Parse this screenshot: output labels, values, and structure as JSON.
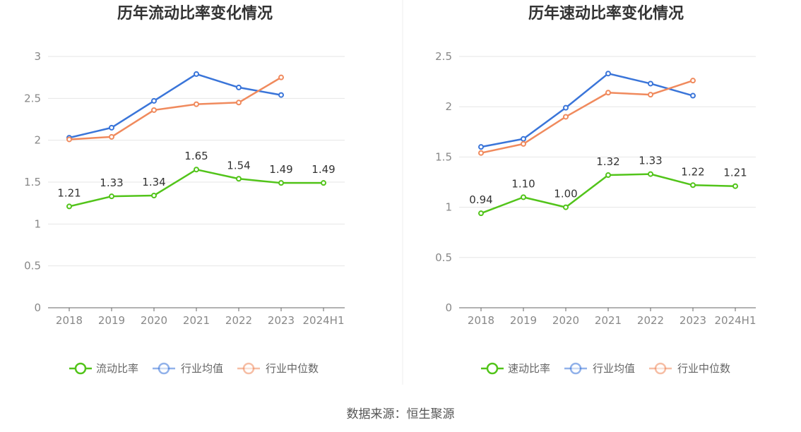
{
  "chart_data": [
    {
      "type": "line",
      "title": "历年流动比率变化情况",
      "categories": [
        "2018",
        "2019",
        "2020",
        "2021",
        "2022",
        "2023",
        "2024H1"
      ],
      "ylim": [
        0,
        3
      ],
      "yticks": [
        "0",
        "0.5",
        "1",
        "1.5",
        "2",
        "2.5",
        "3"
      ],
      "grid": true,
      "legend_position": "bottom",
      "series": [
        {
          "name": "流动比率",
          "color": "#52c41a",
          "values": [
            1.21,
            1.33,
            1.34,
            1.65,
            1.54,
            1.49,
            1.49
          ],
          "labels": [
            "1.21",
            "1.33",
            "1.34",
            "1.65",
            "1.54",
            "1.49",
            "1.49"
          ]
        },
        {
          "name": "行业均值",
          "color": "#3a75d9",
          "values": [
            2.03,
            2.15,
            2.47,
            2.79,
            2.63,
            2.54,
            null
          ]
        },
        {
          "name": "行业中位数",
          "color": "#f08a5d",
          "values": [
            2.01,
            2.04,
            2.36,
            2.43,
            2.45,
            2.75,
            null
          ]
        }
      ]
    },
    {
      "type": "line",
      "title": "历年速动比率变化情况",
      "categories": [
        "2018",
        "2019",
        "2020",
        "2021",
        "2022",
        "2023",
        "2024H1"
      ],
      "ylim": [
        0,
        2.5
      ],
      "yticks": [
        "0",
        "0.5",
        "1",
        "1.5",
        "2",
        "2.5"
      ],
      "grid": true,
      "legend_position": "bottom",
      "series": [
        {
          "name": "速动比率",
          "color": "#52c41a",
          "values": [
            0.94,
            1.1,
            1.0,
            1.32,
            1.33,
            1.22,
            1.21
          ],
          "labels": [
            "0.94",
            "1.10",
            "1.00",
            "1.32",
            "1.33",
            "1.22",
            "1.21"
          ]
        },
        {
          "name": "行业均值",
          "color": "#3a75d9",
          "values": [
            1.6,
            1.68,
            1.99,
            2.33,
            2.23,
            2.11,
            null
          ]
        },
        {
          "name": "行业中位数",
          "color": "#f08a5d",
          "values": [
            1.54,
            1.63,
            1.9,
            2.14,
            2.12,
            2.26,
            null
          ]
        }
      ]
    }
  ],
  "source": "数据来源：恒生聚源"
}
